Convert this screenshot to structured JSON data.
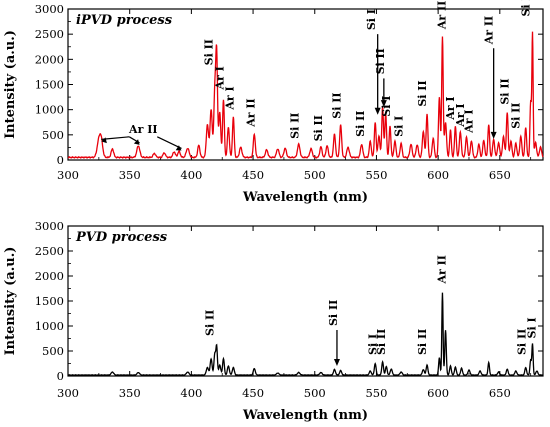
{
  "chart_data": [
    {
      "type": "line",
      "title": "iPVD process",
      "xlabel": "Wavelength (nm)",
      "ylabel": "Intensity (a.u.)",
      "xlim": [
        300,
        685
      ],
      "ylim": [
        0,
        3000
      ],
      "x_ticks": [
        "300",
        "350",
        "400",
        "450",
        "500",
        "550",
        "600",
        "650"
      ],
      "y_ticks": [
        "0",
        "500",
        "1000",
        "1500",
        "2000",
        "2500",
        "3000"
      ],
      "color": "#e8000b",
      "baseline": 40,
      "peaks": [
        {
          "x": 325,
          "y": 330,
          "w": 1.4
        },
        {
          "x": 327,
          "y": 300,
          "w": 1.2
        },
        {
          "x": 336,
          "y": 170,
          "w": 1.0
        },
        {
          "x": 357,
          "y": 230,
          "w": 1.2
        },
        {
          "x": 370,
          "y": 80,
          "w": 1.0
        },
        {
          "x": 378,
          "y": 90,
          "w": 1.0
        },
        {
          "x": 386,
          "y": 110,
          "w": 1.0
        },
        {
          "x": 390,
          "y": 120,
          "w": 1.0
        },
        {
          "x": 397,
          "y": 180,
          "w": 1.2
        },
        {
          "x": 406,
          "y": 240,
          "w": 0.9
        },
        {
          "x": 413,
          "y": 650,
          "w": 0.9
        },
        {
          "x": 416,
          "y": 950,
          "w": 0.9
        },
        {
          "x": 419,
          "y": 1300,
          "w": 0.8
        },
        {
          "x": 420.5,
          "y": 1980,
          "w": 0.7
        },
        {
          "x": 423,
          "y": 900,
          "w": 0.8
        },
        {
          "x": 426,
          "y": 1150,
          "w": 0.7
        },
        {
          "x": 430,
          "y": 600,
          "w": 0.8
        },
        {
          "x": 434,
          "y": 800,
          "w": 0.7
        },
        {
          "x": 440,
          "y": 200,
          "w": 1.0
        },
        {
          "x": 451,
          "y": 460,
          "w": 0.8
        },
        {
          "x": 461,
          "y": 150,
          "w": 1.0
        },
        {
          "x": 470,
          "y": 170,
          "w": 1.0
        },
        {
          "x": 476,
          "y": 180,
          "w": 1.0
        },
        {
          "x": 487,
          "y": 260,
          "w": 1.0
        },
        {
          "x": 497,
          "y": 170,
          "w": 1.0
        },
        {
          "x": 505,
          "y": 210,
          "w": 0.9
        },
        {
          "x": 510,
          "y": 230,
          "w": 0.9
        },
        {
          "x": 516,
          "y": 460,
          "w": 0.8
        },
        {
          "x": 521,
          "y": 640,
          "w": 0.8
        },
        {
          "x": 527,
          "y": 200,
          "w": 1.0
        },
        {
          "x": 538,
          "y": 260,
          "w": 0.9
        },
        {
          "x": 545,
          "y": 320,
          "w": 0.8
        },
        {
          "x": 549,
          "y": 700,
          "w": 0.7
        },
        {
          "x": 552,
          "y": 420,
          "w": 0.8
        },
        {
          "x": 555,
          "y": 1000,
          "w": 0.7
        },
        {
          "x": 557.5,
          "y": 860,
          "w": 0.7
        },
        {
          "x": 561,
          "y": 620,
          "w": 0.7
        },
        {
          "x": 565,
          "y": 320,
          "w": 0.8
        },
        {
          "x": 570,
          "y": 280,
          "w": 0.8
        },
        {
          "x": 578,
          "y": 260,
          "w": 0.9
        },
        {
          "x": 583,
          "y": 250,
          "w": 0.9
        },
        {
          "x": 588,
          "y": 520,
          "w": 0.8
        },
        {
          "x": 591,
          "y": 860,
          "w": 0.7
        },
        {
          "x": 596,
          "y": 380,
          "w": 0.8
        },
        {
          "x": 601,
          "y": 1200,
          "w": 0.7
        },
        {
          "x": 603.5,
          "y": 2400,
          "w": 0.6
        },
        {
          "x": 606,
          "y": 700,
          "w": 0.8
        },
        {
          "x": 610,
          "y": 540,
          "w": 0.7
        },
        {
          "x": 614,
          "y": 620,
          "w": 0.7
        },
        {
          "x": 618,
          "y": 500,
          "w": 0.8
        },
        {
          "x": 623,
          "y": 400,
          "w": 0.8
        },
        {
          "x": 627,
          "y": 330,
          "w": 0.8
        },
        {
          "x": 633,
          "y": 260,
          "w": 0.8
        },
        {
          "x": 637,
          "y": 340,
          "w": 0.8
        },
        {
          "x": 641,
          "y": 650,
          "w": 0.7
        },
        {
          "x": 645,
          "y": 360,
          "w": 0.8
        },
        {
          "x": 649,
          "y": 280,
          "w": 0.9
        },
        {
          "x": 653,
          "y": 420,
          "w": 0.8
        },
        {
          "x": 656,
          "y": 900,
          "w": 0.7
        },
        {
          "x": 659,
          "y": 320,
          "w": 0.8
        },
        {
          "x": 663,
          "y": 280,
          "w": 0.8
        },
        {
          "x": 667,
          "y": 420,
          "w": 0.8
        },
        {
          "x": 671,
          "y": 600,
          "w": 0.7
        },
        {
          "x": 675,
          "y": 1100,
          "w": 0.6
        },
        {
          "x": 676.5,
          "y": 2450,
          "w": 0.5
        },
        {
          "x": 679,
          "y": 300,
          "w": 0.8
        },
        {
          "x": 683,
          "y": 200,
          "w": 0.9
        }
      ],
      "annotations": [
        {
          "text": "Si II",
          "x": 417,
          "y": 1880,
          "rot": true,
          "arrow": false
        },
        {
          "text": "Ar I",
          "x": 426,
          "y": 1400,
          "rot": true,
          "arrow": false
        },
        {
          "text": "Ar I",
          "x": 434,
          "y": 1000,
          "rot": true,
          "arrow": false
        },
        {
          "text": "Ar II",
          "x": 451,
          "y": 660,
          "rot": true,
          "arrow": false
        },
        {
          "text": "Si II",
          "x": 487,
          "y": 420,
          "rot": true,
          "arrow": false
        },
        {
          "text": "Si II",
          "x": 506,
          "y": 370,
          "rot": true,
          "arrow": false
        },
        {
          "text": "Si II",
          "x": 521,
          "y": 820,
          "rot": true,
          "arrow": false
        },
        {
          "text": "Si II",
          "x": 540,
          "y": 460,
          "rot": true,
          "arrow": false
        },
        {
          "text": "Si I",
          "x": 549,
          "y": 2580,
          "rot": true,
          "arrow": true,
          "ax": 551,
          "ay": 900
        },
        {
          "text": "Si II",
          "x": 556,
          "y": 1700,
          "rot": true,
          "arrow": true,
          "ax": 556,
          "ay": 1050
        },
        {
          "text": "Si I",
          "x": 561,
          "y": 860,
          "rot": true,
          "arrow": false
        },
        {
          "text": "Si I",
          "x": 571,
          "y": 460,
          "rot": true,
          "arrow": false
        },
        {
          "text": "Si II",
          "x": 590,
          "y": 1060,
          "rot": true,
          "arrow": false
        },
        {
          "text": "Ar II",
          "x": 606,
          "y": 2600,
          "rot": true,
          "arrow": false
        },
        {
          "text": "Ar I",
          "x": 613,
          "y": 800,
          "rot": true,
          "arrow": false
        },
        {
          "text": "Ar I",
          "x": 621,
          "y": 660,
          "rot": true,
          "arrow": false
        },
        {
          "text": "Ar I",
          "x": 628,
          "y": 540,
          "rot": true,
          "arrow": false
        },
        {
          "text": "Ar II",
          "x": 644,
          "y": 2300,
          "rot": true,
          "arrow": true,
          "ax": 645,
          "ay": 420
        },
        {
          "text": "Si II",
          "x": 657,
          "y": 1100,
          "rot": true,
          "arrow": false
        },
        {
          "text": "Si II",
          "x": 666,
          "y": 620,
          "rot": true,
          "arrow": false
        },
        {
          "text": "Si I",
          "x": 674,
          "y": 2850,
          "rot": true,
          "arrow": false
        }
      ],
      "group_label": {
        "text": "Ar II",
        "x": 361,
        "y": 540,
        "arrows": [
          {
            "ax": 327,
            "ay": 330
          },
          {
            "ax": 358,
            "ay": 260
          },
          {
            "ax": 392,
            "ay": 150
          }
        ]
      }
    },
    {
      "type": "line",
      "title": "PVD process",
      "xlabel": "Wavelength (nm)",
      "ylabel": "Intensity (a.u.)",
      "xlim": [
        300,
        685
      ],
      "ylim": [
        0,
        3000
      ],
      "x_ticks": [
        "300",
        "350",
        "400",
        "450",
        "500",
        "550",
        "600",
        "650"
      ],
      "y_ticks": [
        "0",
        "500",
        "1000",
        "1500",
        "2000",
        "2500",
        "3000"
      ],
      "color": "#000000",
      "baseline": 15,
      "peaks": [
        {
          "x": 336,
          "y": 60,
          "w": 1.0
        },
        {
          "x": 357,
          "y": 50,
          "w": 1.0
        },
        {
          "x": 397,
          "y": 60,
          "w": 1.0
        },
        {
          "x": 413,
          "y": 150,
          "w": 0.9
        },
        {
          "x": 416,
          "y": 320,
          "w": 0.8
        },
        {
          "x": 419,
          "y": 420,
          "w": 0.7
        },
        {
          "x": 420.5,
          "y": 560,
          "w": 0.6
        },
        {
          "x": 423,
          "y": 200,
          "w": 0.8
        },
        {
          "x": 426,
          "y": 330,
          "w": 0.7
        },
        {
          "x": 430,
          "y": 180,
          "w": 0.8
        },
        {
          "x": 434,
          "y": 150,
          "w": 0.8
        },
        {
          "x": 451,
          "y": 130,
          "w": 0.8
        },
        {
          "x": 470,
          "y": 40,
          "w": 1.0
        },
        {
          "x": 487,
          "y": 50,
          "w": 1.0
        },
        {
          "x": 505,
          "y": 50,
          "w": 1.0
        },
        {
          "x": 516,
          "y": 110,
          "w": 0.8
        },
        {
          "x": 521,
          "y": 90,
          "w": 0.8
        },
        {
          "x": 545,
          "y": 80,
          "w": 0.8
        },
        {
          "x": 549,
          "y": 230,
          "w": 0.7
        },
        {
          "x": 555,
          "y": 260,
          "w": 0.7
        },
        {
          "x": 558,
          "y": 170,
          "w": 0.7
        },
        {
          "x": 562,
          "y": 120,
          "w": 0.8
        },
        {
          "x": 570,
          "y": 60,
          "w": 0.9
        },
        {
          "x": 588,
          "y": 110,
          "w": 0.8
        },
        {
          "x": 591,
          "y": 200,
          "w": 0.7
        },
        {
          "x": 601,
          "y": 350,
          "w": 0.6
        },
        {
          "x": 603.5,
          "y": 1650,
          "w": 0.5
        },
        {
          "x": 606,
          "y": 900,
          "w": 0.6
        },
        {
          "x": 610,
          "y": 180,
          "w": 0.7
        },
        {
          "x": 614,
          "y": 160,
          "w": 0.7
        },
        {
          "x": 619,
          "y": 140,
          "w": 0.7
        },
        {
          "x": 625,
          "y": 100,
          "w": 0.8
        },
        {
          "x": 634,
          "y": 80,
          "w": 0.8
        },
        {
          "x": 641,
          "y": 250,
          "w": 0.6
        },
        {
          "x": 649,
          "y": 60,
          "w": 0.8
        },
        {
          "x": 656,
          "y": 120,
          "w": 0.7
        },
        {
          "x": 663,
          "y": 80,
          "w": 0.8
        },
        {
          "x": 671,
          "y": 150,
          "w": 0.7
        },
        {
          "x": 675,
          "y": 300,
          "w": 0.6
        },
        {
          "x": 676.5,
          "y": 620,
          "w": 0.5
        },
        {
          "x": 680,
          "y": 80,
          "w": 0.8
        }
      ],
      "annotations": [
        {
          "text": "Si II",
          "x": 418,
          "y": 800,
          "rot": true,
          "arrow": false
        },
        {
          "text": "Si II",
          "x": 518,
          "y": 1000,
          "rot": true,
          "arrow": true,
          "ax": 518,
          "ay": 200
        },
        {
          "text": "Si I",
          "x": 550,
          "y": 420,
          "rot": true,
          "arrow": false
        },
        {
          "text": "Si II",
          "x": 557,
          "y": 420,
          "rot": true,
          "arrow": false
        },
        {
          "text": "Si II",
          "x": 590,
          "y": 420,
          "rot": true,
          "arrow": false
        },
        {
          "text": "Ar II",
          "x": 606,
          "y": 1850,
          "rot": true,
          "arrow": false
        },
        {
          "text": "Si II",
          "x": 671,
          "y": 420,
          "rot": true,
          "arrow": false
        },
        {
          "text": "Si I",
          "x": 679,
          "y": 750,
          "rot": true,
          "arrow": false
        }
      ]
    }
  ]
}
